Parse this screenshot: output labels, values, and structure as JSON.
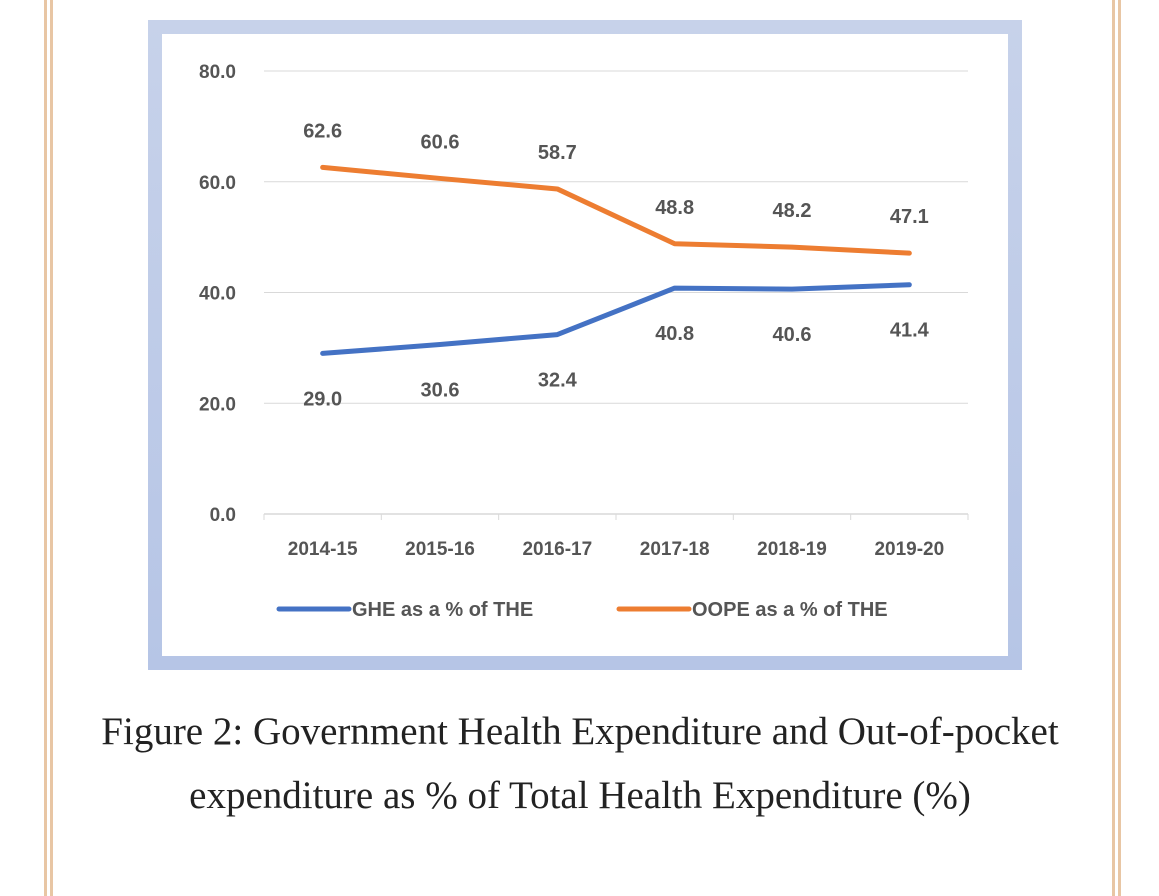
{
  "caption": "Figure 2: Government Health Expenditure and Out-of-pocket expenditure as % of Total Health Expenditure (%)",
  "chart_data": {
    "type": "line",
    "categories": [
      "2014-15",
      "2015-16",
      "2016-17",
      "2017-18",
      "2018-19",
      "2019-20"
    ],
    "series": [
      {
        "name": "GHE as a % of THE",
        "values": [
          29.0,
          30.6,
          32.4,
          40.8,
          40.6,
          41.4
        ],
        "labels": [
          "29.0",
          "30.6",
          "32.4",
          "40.8",
          "40.6",
          "41.4"
        ],
        "color": "#4472c4",
        "label_position": "below"
      },
      {
        "name": "OOPE as a % of THE",
        "values": [
          62.6,
          60.6,
          58.7,
          48.8,
          48.2,
          47.1
        ],
        "labels": [
          "62.6",
          "60.6",
          "58.7",
          "48.8",
          "48.2",
          "47.1"
        ],
        "color": "#ed7d31",
        "label_position": "above"
      }
    ],
    "ylim": [
      0,
      80
    ],
    "yticks": [
      "0.0",
      "20.0",
      "40.0",
      "60.0",
      "80.0"
    ],
    "ytick_values": [
      0,
      20,
      40,
      60,
      80
    ],
    "grid": true,
    "gridline_color": "#d9d9d9",
    "legend_placement": "bottom"
  }
}
